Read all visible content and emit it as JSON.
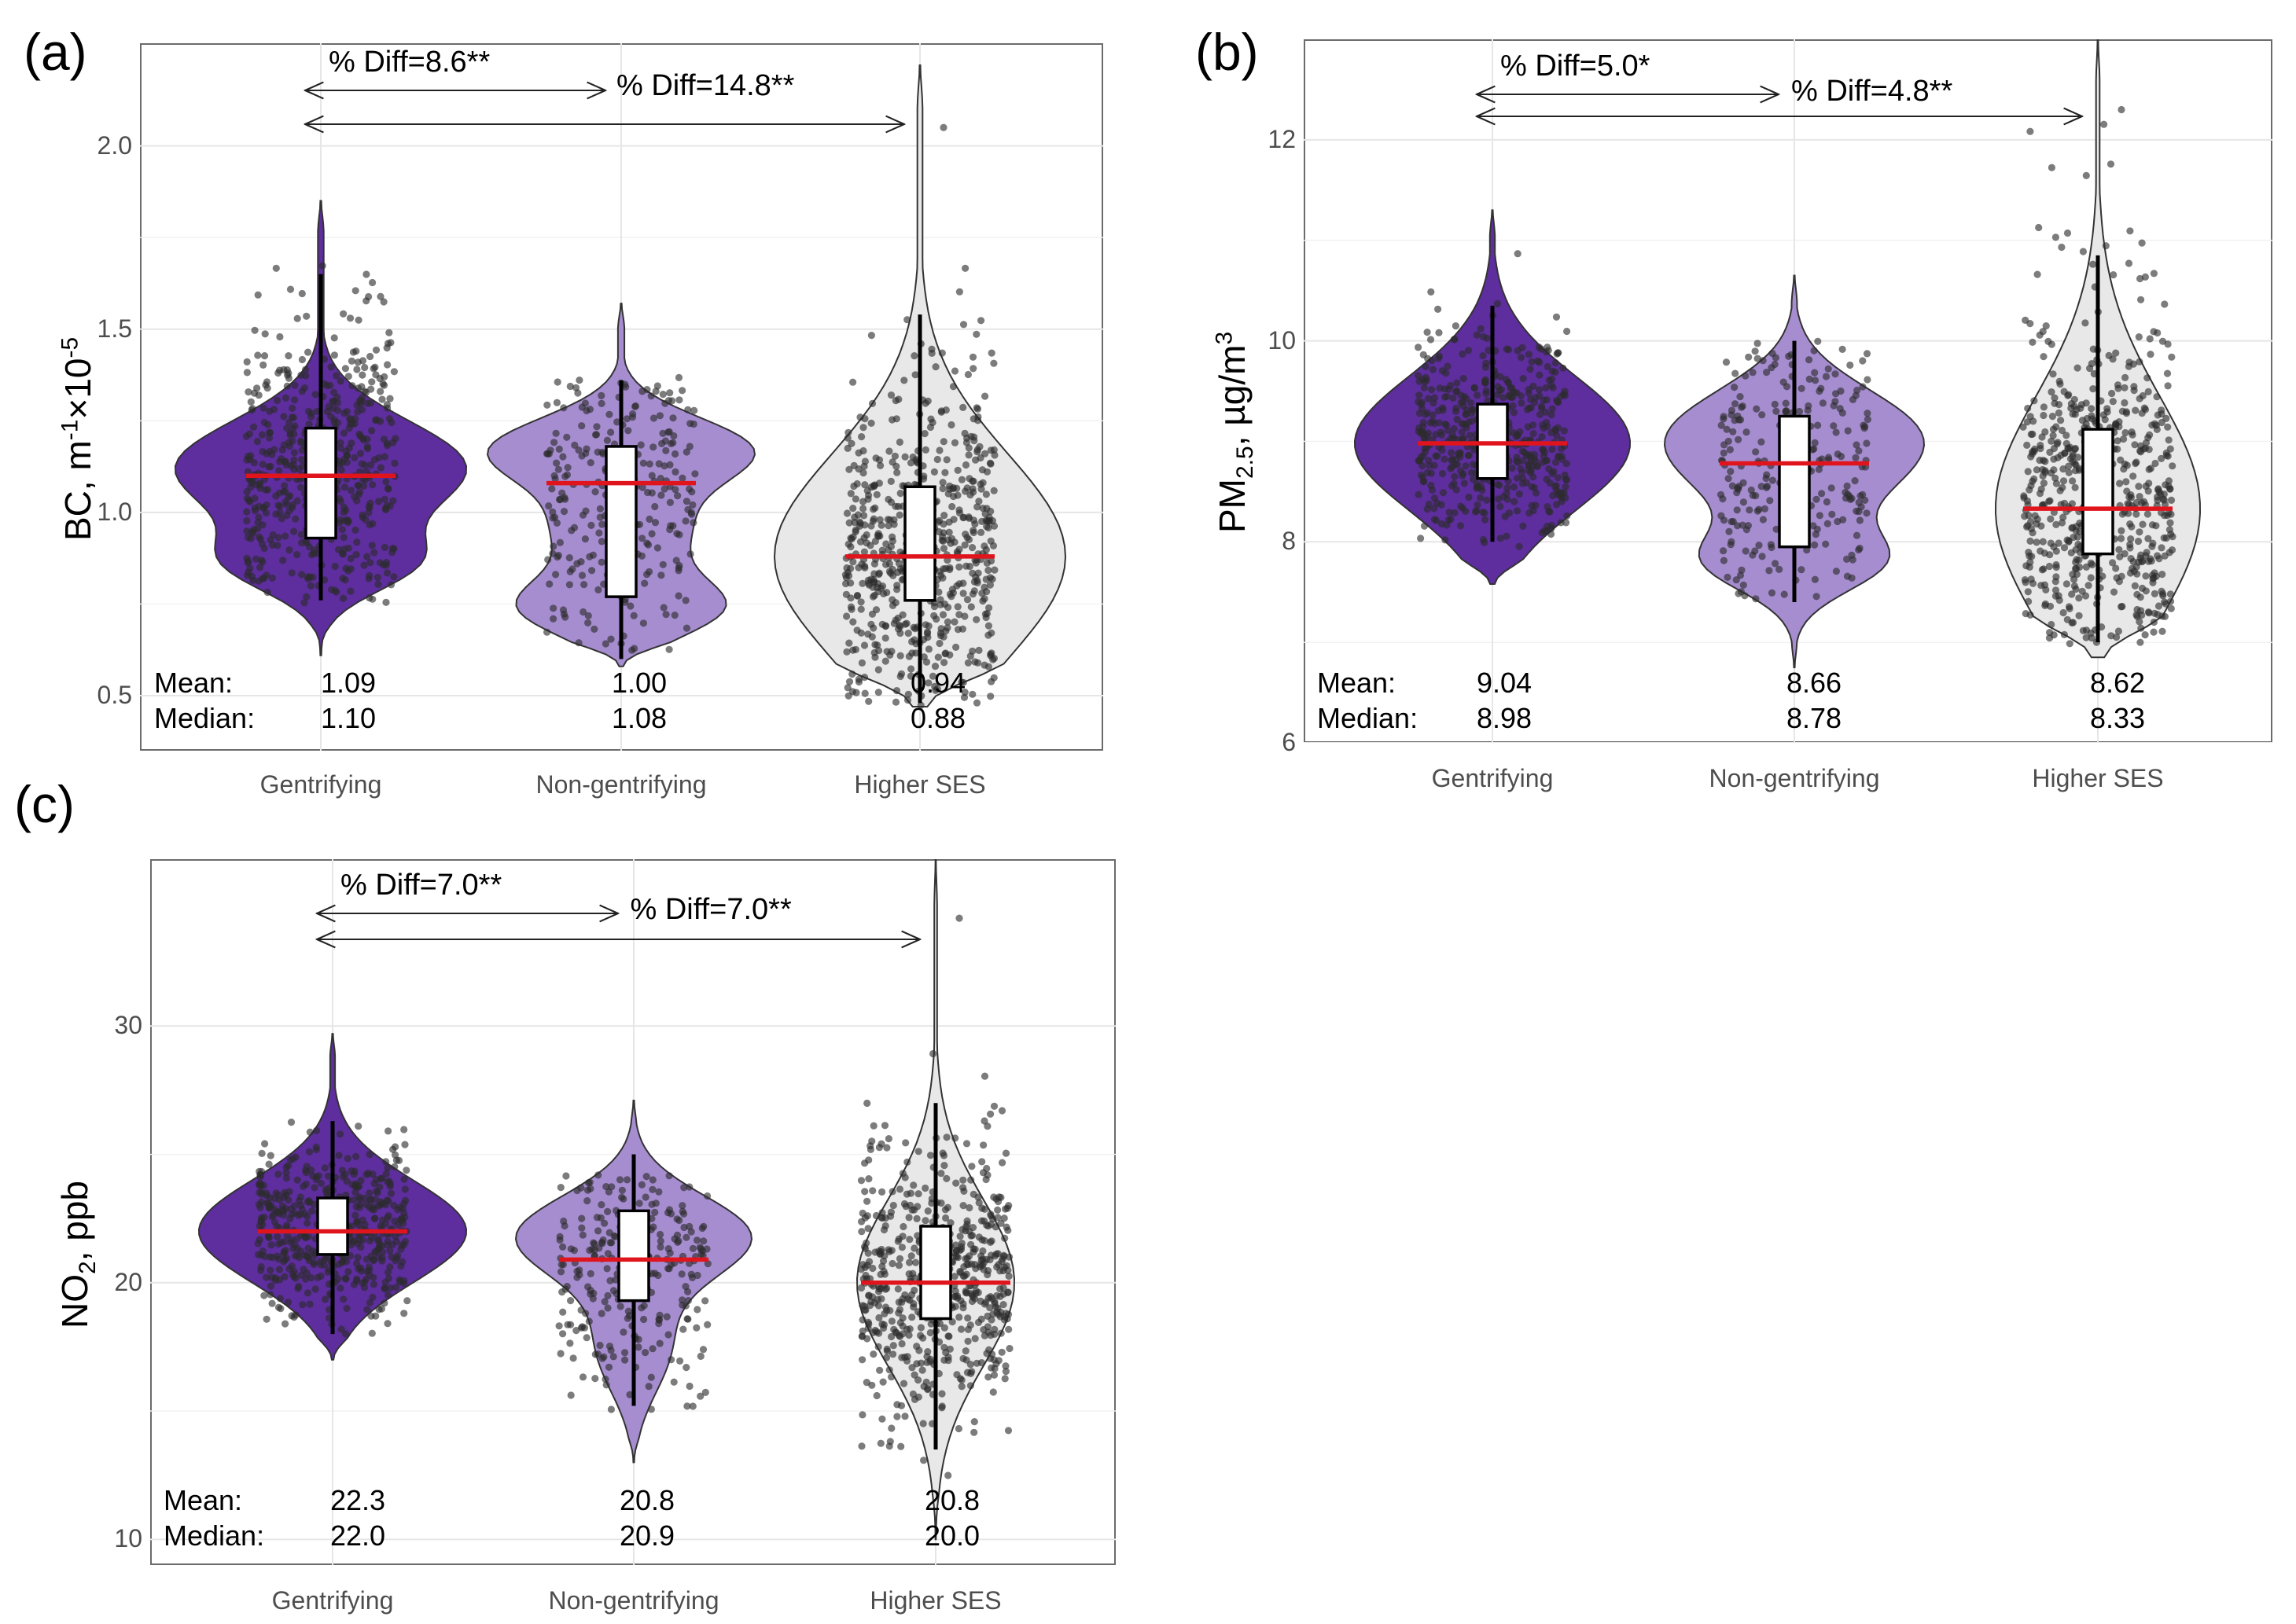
{
  "chart_data": [
    {
      "type": "violin",
      "panel": "(a)",
      "ylabel_main": "BC, m",
      "ylabel_sup1": "-1",
      "ylabel_mid": "×10",
      "ylabel_sup2": "-5",
      "ylim": [
        0.35,
        2.28
      ],
      "yticks": [
        0.5,
        1.0,
        1.5,
        2.0
      ],
      "ytick_labels": [
        "0.5",
        "1.0",
        "1.5",
        "2.0"
      ],
      "categories": [
        "Gentrifying",
        "Non-gentrifying",
        "Higher SES"
      ],
      "colors": [
        "#5e2d9e",
        "#a68dd0",
        "#e8e8e8"
      ],
      "mean": [
        1.09,
        1.0,
        0.94
      ],
      "median": [
        1.1,
        1.08,
        0.88
      ],
      "mean_labels": [
        "1.09",
        "1.00",
        "0.94"
      ],
      "median_labels": [
        "1.10",
        "1.08",
        "0.88"
      ],
      "q1": [
        0.93,
        0.77,
        0.76
      ],
      "q3": [
        1.23,
        1.18,
        1.07
      ],
      "whisker_low": [
        0.76,
        0.6,
        0.48
      ],
      "whisker_high": [
        1.65,
        1.36,
        1.54
      ],
      "range": [
        [
          0.61,
          1.85
        ],
        [
          0.58,
          1.57
        ],
        [
          0.47,
          2.22
        ]
      ],
      "jitter_range": [
        [
          0.75,
          1.71
        ],
        [
          0.62,
          1.37
        ],
        [
          0.47,
          1.72
        ]
      ],
      "outliers": [
        [],
        [],
        [
          2.05
        ]
      ],
      "point_counts": [
        520,
        260,
        620
      ],
      "mean_text": "Mean:",
      "median_text": "Median:",
      "comparisons": [
        {
          "label": "% Diff=8.6**",
          "from": 0,
          "to": 1
        },
        {
          "label": "% Diff=14.8**",
          "from": 0,
          "to": 2
        }
      ]
    },
    {
      "type": "violin",
      "panel": "(b)",
      "ylabel_main": "PM",
      "ylabel_sub": "2.5",
      "ylabel_unit": ", µg/m",
      "ylabel_sup": "3",
      "ylim": [
        6.0,
        13.0
      ],
      "yticks": [
        6,
        8,
        10,
        12
      ],
      "ytick_labels": [
        "6",
        "8",
        "10",
        "12"
      ],
      "categories": [
        "Gentrifying",
        "Non-gentrifying",
        "Higher SES"
      ],
      "colors": [
        "#5e2d9e",
        "#a68dd0",
        "#e8e8e8"
      ],
      "mean": [
        9.04,
        8.66,
        8.62
      ],
      "median": [
        8.98,
        8.78,
        8.33
      ],
      "mean_labels": [
        "9.04",
        "8.66",
        "8.62"
      ],
      "median_labels": [
        "8.98",
        "8.78",
        "8.33"
      ],
      "q1": [
        8.63,
        7.95,
        7.88
      ],
      "q3": [
        9.37,
        9.25,
        9.12
      ],
      "whisker_low": [
        8.0,
        7.4,
        7.0
      ],
      "whisker_high": [
        10.35,
        10.0,
        10.85
      ],
      "range": [
        [
          7.58,
          11.3
        ],
        [
          6.75,
          10.65
        ],
        [
          6.85,
          13.0
        ]
      ],
      "jitter_range": [
        [
          7.95,
          10.9
        ],
        [
          7.4,
          10.0
        ],
        [
          6.95,
          12.2
        ]
      ],
      "outliers": [
        [],
        [],
        [
          12.3
        ]
      ],
      "point_counts": [
        520,
        260,
        620
      ],
      "mean_text": "Mean:",
      "median_text": "Median:",
      "comparisons": [
        {
          "label": "% Diff=5.0*",
          "from": 0,
          "to": 1
        },
        {
          "label": "% Diff=4.8**",
          "from": 0,
          "to": 2
        }
      ]
    },
    {
      "type": "violin",
      "panel": "(c)",
      "ylabel_main": "NO",
      "ylabel_sub": "2",
      "ylabel_unit": ", ppb",
      "ylim": [
        9.0,
        36.5
      ],
      "yticks": [
        10,
        20,
        30
      ],
      "ytick_labels": [
        "10",
        "20",
        "30"
      ],
      "categories": [
        "Gentrifying",
        "Non-gentrifying",
        "Higher SES"
      ],
      "colors": [
        "#5e2d9e",
        "#a68dd0",
        "#e8e8e8"
      ],
      "mean": [
        22.3,
        20.8,
        20.8
      ],
      "median": [
        22.0,
        20.9,
        20.0
      ],
      "mean_labels": [
        "22.3",
        "20.8",
        "20.8"
      ],
      "median_labels": [
        "22.0",
        "20.9",
        "20.0"
      ],
      "q1": [
        21.1,
        19.3,
        18.6
      ],
      "q3": [
        23.3,
        22.8,
        22.2
      ],
      "whisker_low": [
        18.0,
        15.2,
        13.5
      ],
      "whisker_high": [
        26.3,
        25.0,
        27.0
      ],
      "range": [
        [
          17.0,
          29.7
        ],
        [
          13.0,
          27.1
        ],
        [
          10.0,
          36.5
        ]
      ],
      "jitter_range": [
        [
          18.0,
          27.8
        ],
        [
          15.0,
          24.2
        ],
        [
          11.5,
          34.5
        ]
      ],
      "outliers": [
        [],
        [],
        [
          34.2
        ]
      ],
      "point_counts": [
        520,
        260,
        620
      ],
      "mean_text": "Mean:",
      "median_text": "Median:",
      "comparisons": [
        {
          "label": "% Diff=7.0**",
          "from": 0,
          "to": 1
        },
        {
          "label": "% Diff=7.0**",
          "from": 0,
          "to": 2
        }
      ]
    }
  ]
}
